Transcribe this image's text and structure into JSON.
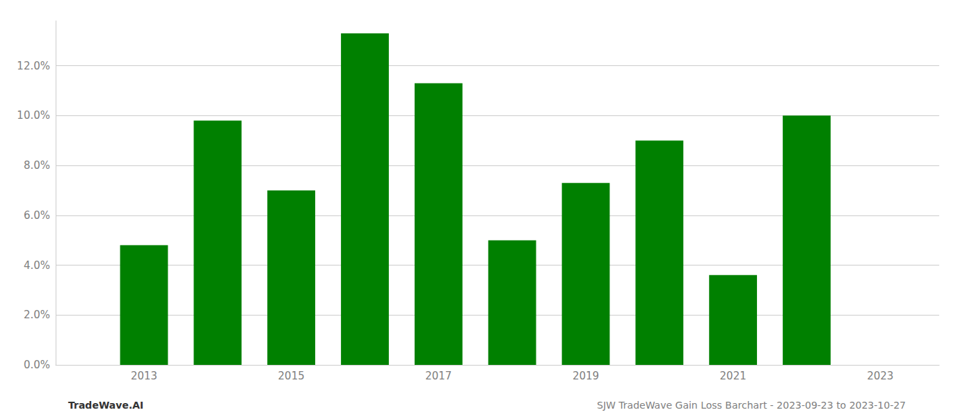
{
  "chart_data": {
    "type": "bar",
    "x": [
      2013,
      2014,
      2015,
      2016,
      2017,
      2018,
      2019,
      2020,
      2021,
      2022
    ],
    "values": [
      0.048,
      0.098,
      0.07,
      0.133,
      0.113,
      0.05,
      0.073,
      0.09,
      0.036,
      0.1
    ],
    "color": "#008000",
    "xlim": [
      2011.8,
      2023.8
    ],
    "xticks": [
      2013,
      2015,
      2017,
      2019,
      2021,
      2023
    ],
    "ylim": [
      0,
      0.138
    ],
    "yticks": [
      {
        "value": 0.0,
        "label": "0.0%"
      },
      {
        "value": 0.02,
        "label": "2.0%"
      },
      {
        "value": 0.04,
        "label": "4.0%"
      },
      {
        "value": 0.06,
        "label": "6.0%"
      },
      {
        "value": 0.08,
        "label": "8.0%"
      },
      {
        "value": 0.1,
        "label": "10.0%"
      },
      {
        "value": 0.12,
        "label": "12.0%"
      }
    ],
    "grid": true,
    "annotations": [
      "TradeWave.AI",
      "SJW TradeWave Gain Loss Barchart - 2023-09-23 to 2023-10-27"
    ]
  }
}
